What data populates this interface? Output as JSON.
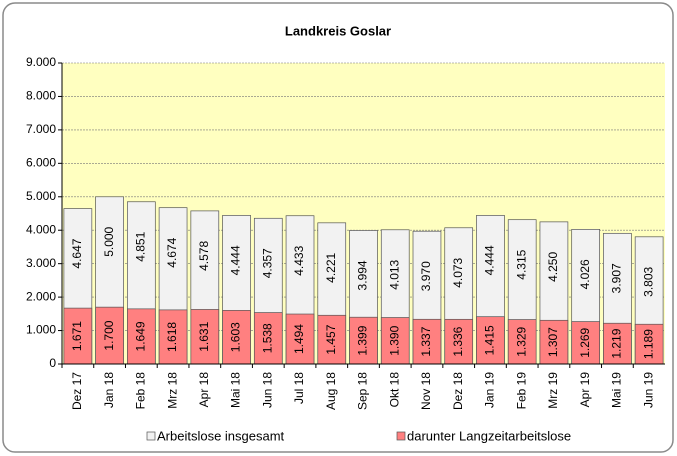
{
  "chart_data": {
    "type": "bar",
    "title": "Landkreis Goslar",
    "categories": [
      "Dez 17",
      "Jan 18",
      "Feb 18",
      "Mrz 18",
      "Apr 18",
      "Mai 18",
      "Jun 18",
      "Jul 18",
      "Aug 18",
      "Sep 18",
      "Okt 18",
      "Nov 18",
      "Dez 18",
      "Jan 19",
      "Feb 19",
      "Mrz 19",
      "Apr 19",
      "Mai 19",
      "Jun 19"
    ],
    "series": [
      {
        "name": "Arbeitslose insgesamt",
        "color": "#f2f2f2",
        "values": [
          4647,
          5000,
          4851,
          4674,
          4578,
          4444,
          4357,
          4433,
          4221,
          3994,
          4013,
          3970,
          4073,
          4444,
          4315,
          4250,
          4026,
          3907,
          3803
        ],
        "value_labels": [
          "4.647",
          "5.000",
          "4.851",
          "4.674",
          "4.578",
          "4.444",
          "4.357",
          "4.433",
          "4.221",
          "3.994",
          "4.013",
          "3.970",
          "4.073",
          "4.444",
          "4.315",
          "4.250",
          "4.026",
          "3.907",
          "3.803"
        ]
      },
      {
        "name": "darunter Langzeitarbeitslose",
        "color": "#ff8080",
        "values": [
          1671,
          1700,
          1649,
          1618,
          1631,
          1603,
          1538,
          1494,
          1457,
          1399,
          1390,
          1337,
          1336,
          1415,
          1329,
          1307,
          1269,
          1219,
          1189
        ],
        "value_labels": [
          "1.671",
          "1.700",
          "1.649",
          "1.618",
          "1.631",
          "1.603",
          "1.538",
          "1.494",
          "1.457",
          "1.399",
          "1.390",
          "1.337",
          "1.336",
          "1.415",
          "1.329",
          "1.307",
          "1.269",
          "1.219",
          "1.189"
        ]
      }
    ],
    "ylim": [
      0,
      9000
    ],
    "yticks": [
      0,
      {
        "value": 1000,
        "label": "1.000"
      },
      {
        "value": 2000,
        "label": "2.000"
      },
      {
        "value": 3000,
        "label": "3.000"
      },
      {
        "value": 4000,
        "label": "4.000"
      },
      {
        "value": 5000,
        "label": "5.000"
      },
      {
        "value": 6000,
        "label": "6.000"
      },
      {
        "value": 7000,
        "label": "7.000"
      },
      {
        "value": 8000,
        "label": "8.000"
      },
      {
        "value": 9000,
        "label": "9.000"
      }
    ],
    "grid": true,
    "legend": "bottom",
    "overlap": true
  }
}
